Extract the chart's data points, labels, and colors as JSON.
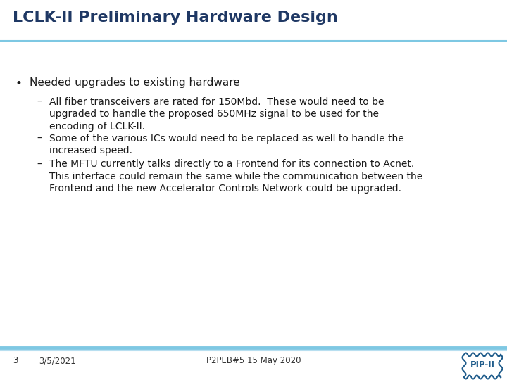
{
  "title": "LCLK-II Preliminary Hardware Design",
  "title_color": "#1F3864",
  "title_fontsize": 16,
  "bg_color": "#ffffff",
  "bullet": "Needed upgrades to existing hardware",
  "bullet_fontsize": 11,
  "bullet_color": "#1a1a1a",
  "sub_bullets": [
    "All fiber transceivers are rated for 150Mbd.  These would need to be\nupgraded to handle the proposed 650MHz signal to be used for the\nencoding of LCLK-II.",
    "Some of the various ICs would need to be replaced as well to handle the\nincreased speed.",
    "The MFTU currently talks directly to a Frontend for its connection to Acnet.\nThis interface could remain the same while the communication between the\nFrontend and the new Accelerator Controls Network could be upgraded."
  ],
  "sub_bullet_fontsize": 10,
  "sub_bullet_color": "#1a1a1a",
  "footer_left_num": "3",
  "footer_left_date": "3/5/2021",
  "footer_center": "P2PEB#5 15 May 2020",
  "footer_color": "#333333",
  "footer_fontsize": 8.5,
  "separator_color": "#7EC8E3",
  "pip_ii_color": "#1F5C8B"
}
